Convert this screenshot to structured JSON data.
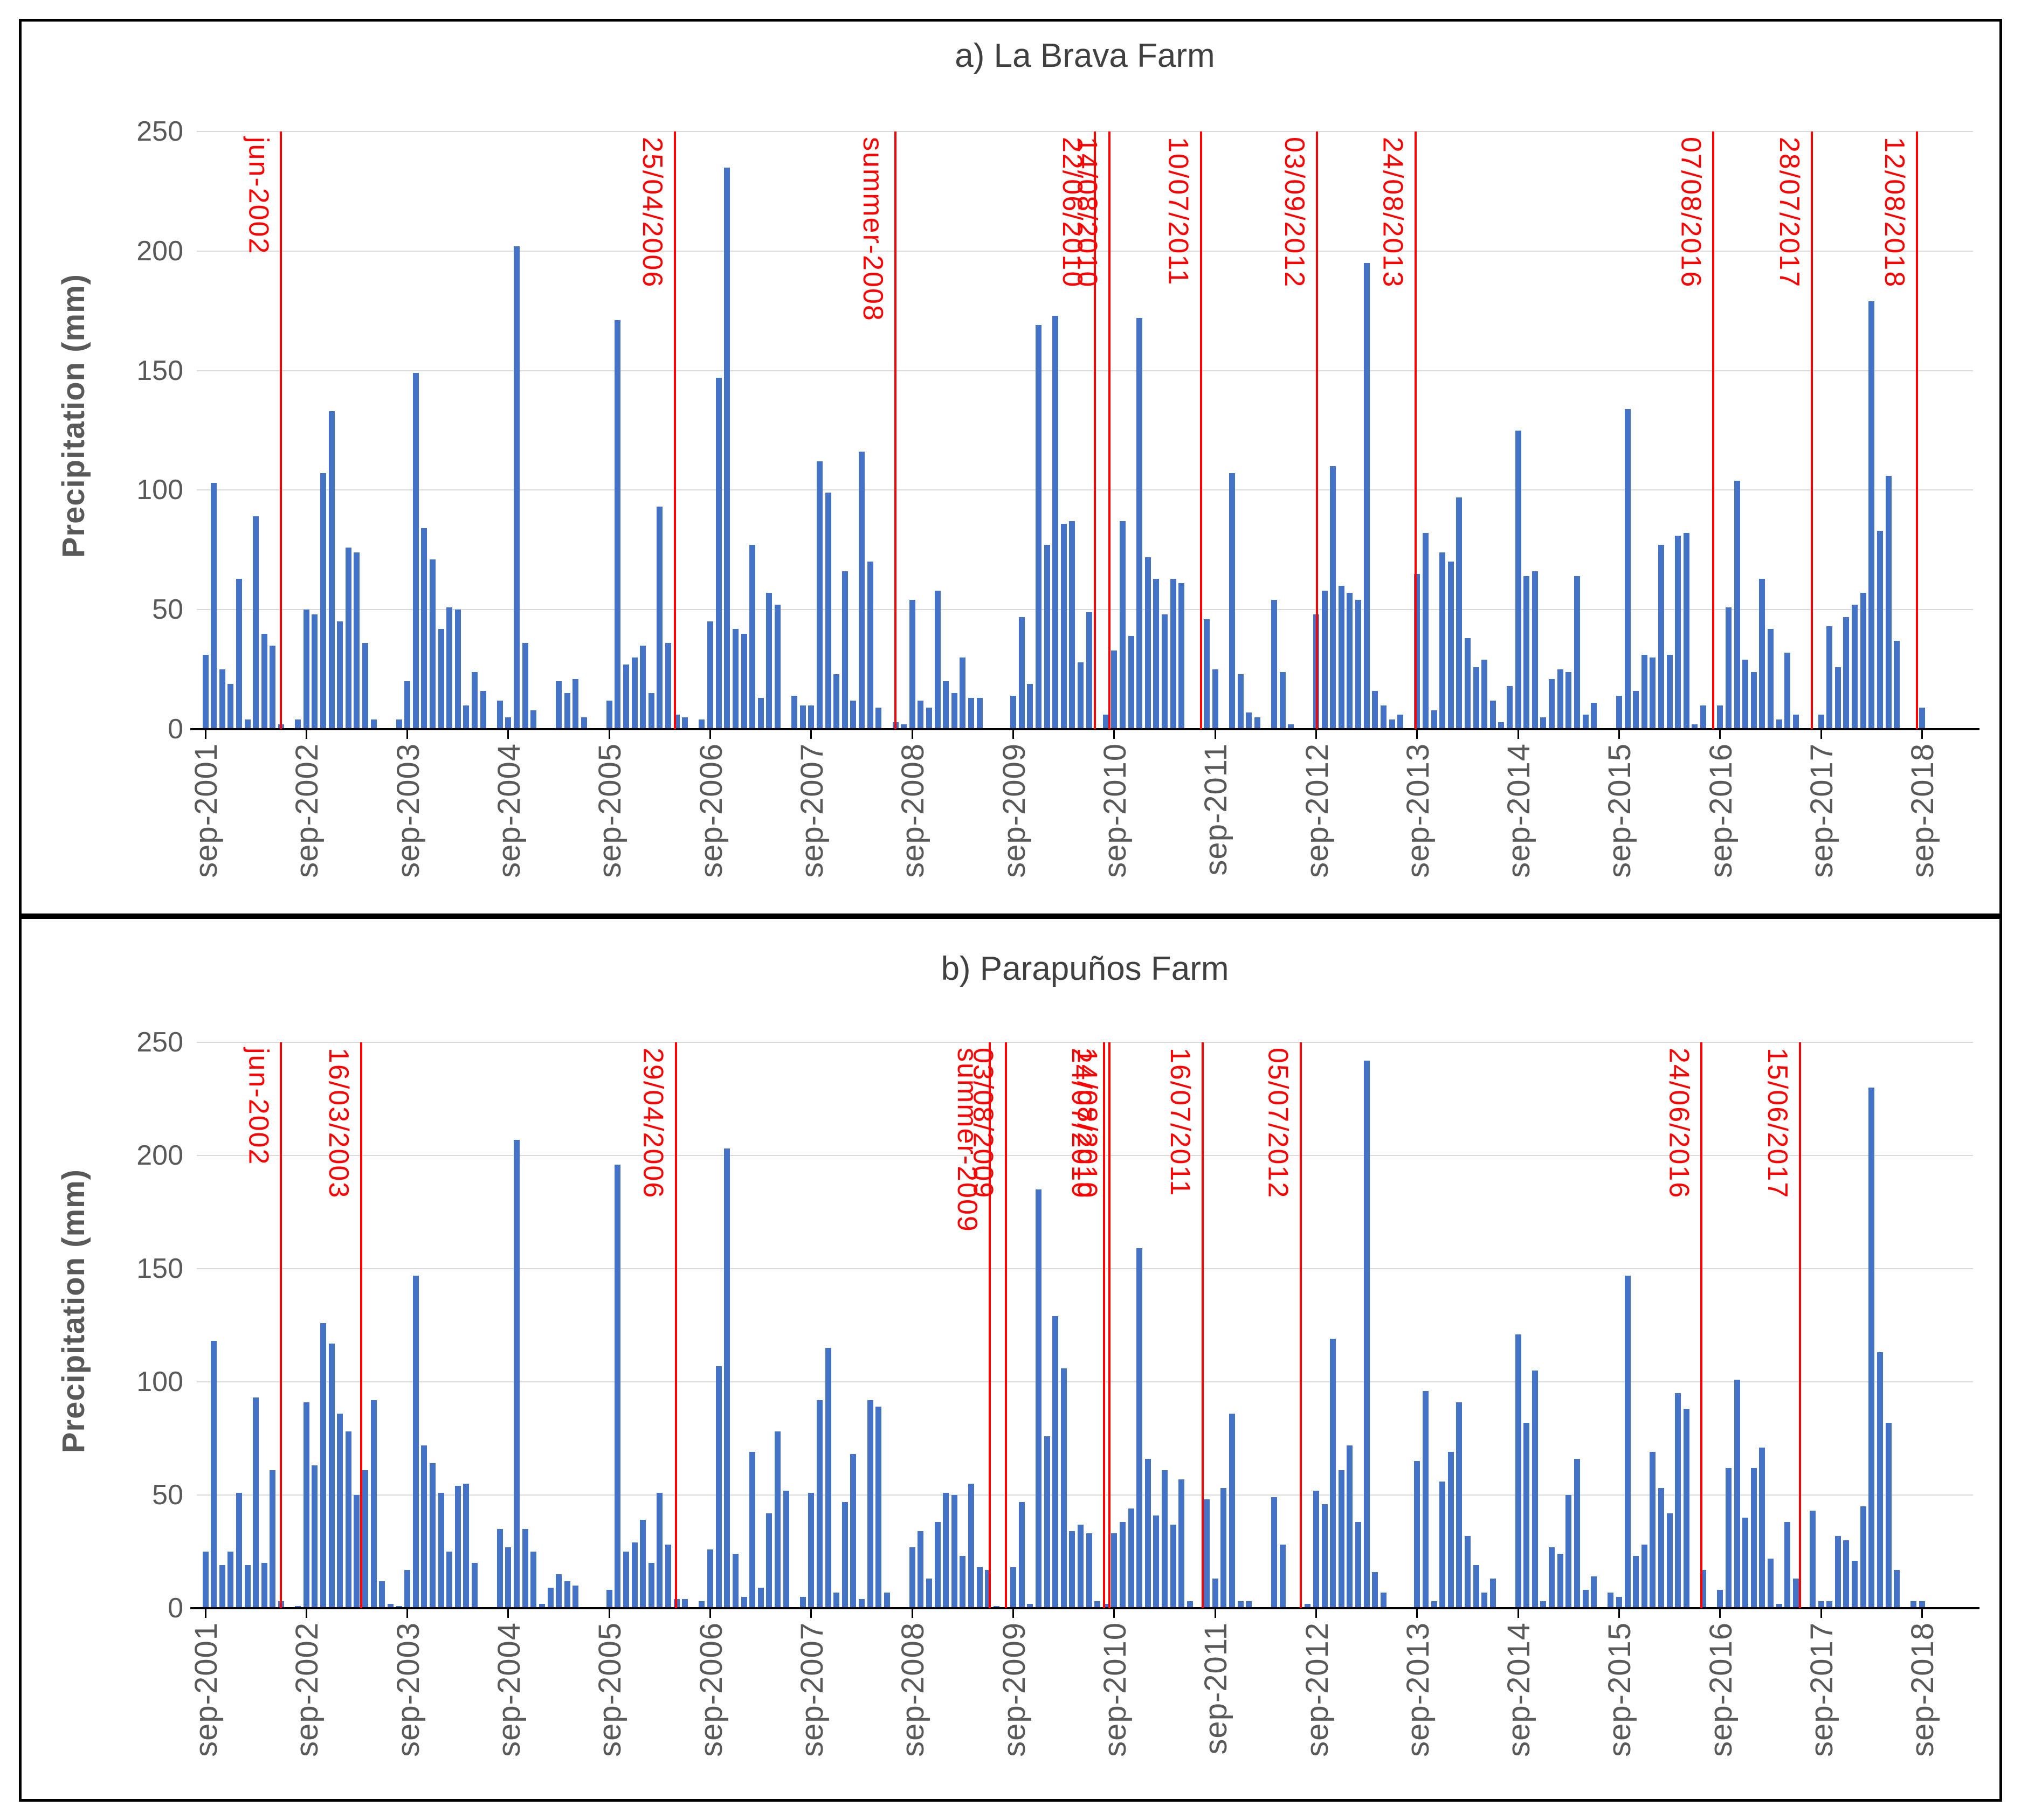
{
  "page": {
    "type": "scientific-figure",
    "description": "Two stacked monthly precipitation bar charts with red event-date marker lines",
    "colors": {
      "bar": "#4472C4",
      "event_line": "#FF0000",
      "event_label": "#FF0000",
      "gridline": "#D9D9D9",
      "axis": "#000000",
      "tick_text": "#595959",
      "title_text": "#404040",
      "panel_border": "#000000",
      "background": "#FFFFFF"
    }
  },
  "chart_data": [
    {
      "type": "bar",
      "panel": "a",
      "title": "a) La Brava Farm",
      "ylabel": "Precipitation (mm)",
      "xlabel": "",
      "ylim": [
        0,
        250
      ],
      "y_ticks": [
        0,
        50,
        100,
        150,
        200,
        250
      ],
      "grid": true,
      "legend": false,
      "x_unit": "month",
      "x_start": "sep-2001",
      "x_end": "sep-2018",
      "n_months": 205,
      "x_tick_labels": [
        "sep-2001",
        "sep-2002",
        "sep-2003",
        "sep-2004",
        "sep-2005",
        "sep-2006",
        "sep-2007",
        "sep-2008",
        "sep-2009",
        "sep-2010",
        "sep-2011",
        "sep-2012",
        "sep-2013",
        "sep-2014",
        "sep-2015",
        "sep-2016",
        "sep-2017",
        "sep-2018"
      ],
      "values": [
        31,
        103,
        25,
        19,
        63,
        4,
        89,
        40,
        35,
        2,
        0,
        4,
        50,
        48,
        107,
        133,
        45,
        76,
        74,
        36,
        4,
        0,
        0,
        4,
        20,
        149,
        84,
        71,
        42,
        51,
        50,
        10,
        24,
        16,
        0,
        12,
        5,
        202,
        36,
        8,
        0,
        0,
        20,
        15,
        21,
        5,
        0,
        0,
        12,
        171,
        27,
        30,
        35,
        15,
        93,
        36,
        6,
        5,
        0,
        4,
        45,
        147,
        235,
        42,
        40,
        77,
        13,
        57,
        52,
        0,
        14,
        10,
        10,
        112,
        99,
        23,
        66,
        12,
        116,
        70,
        9,
        0,
        3,
        2,
        54,
        12,
        9,
        58,
        20,
        15,
        30,
        13,
        13,
        0,
        0,
        0,
        14,
        47,
        19,
        169,
        77,
        173,
        86,
        87,
        28,
        49,
        0,
        6,
        33,
        87,
        39,
        172,
        72,
        63,
        48,
        63,
        61,
        0,
        0,
        46,
        25,
        0,
        107,
        23,
        7,
        5,
        0,
        54,
        24,
        2,
        0,
        0,
        48,
        58,
        110,
        60,
        57,
        54,
        195,
        16,
        10,
        4,
        6,
        0,
        65,
        82,
        8,
        74,
        70,
        97,
        38,
        26,
        29,
        12,
        3,
        18,
        125,
        64,
        66,
        5,
        21,
        25,
        24,
        64,
        6,
        11,
        0,
        0,
        14,
        134,
        16,
        31,
        30,
        77,
        31,
        81,
        82,
        2,
        10,
        0,
        10,
        51,
        104,
        29,
        24,
        63,
        42,
        4,
        32,
        6,
        0,
        0,
        6,
        43,
        26,
        47,
        52,
        57,
        179,
        83,
        106,
        37,
        0,
        0,
        9
      ],
      "annotations": [
        {
          "label": "jun-2002",
          "month_index": 9.0
        },
        {
          "label": "25/04/2006",
          "month_index": 55.8
        },
        {
          "label": "summer-2008",
          "month_index": 82.0
        },
        {
          "label": "22/06/2010",
          "month_index": 105.7
        },
        {
          "label": "14/08/2010",
          "month_index": 107.45
        },
        {
          "label": "10/07/2011",
          "month_index": 118.3
        },
        {
          "label": "03/09/2012",
          "month_index": 132.1
        },
        {
          "label": "24/08/2013",
          "month_index": 143.8
        },
        {
          "label": "07/08/2016",
          "month_index": 179.2
        },
        {
          "label": "28/07/2017",
          "month_index": 190.9
        },
        {
          "label": "12/08/2018",
          "month_index": 203.4
        }
      ]
    },
    {
      "type": "bar",
      "panel": "b",
      "title": "b) Parapuños Farm",
      "ylabel": "Precipitation (mm)",
      "xlabel": "",
      "ylim": [
        0,
        250
      ],
      "y_ticks": [
        0,
        50,
        100,
        150,
        200,
        250
      ],
      "grid": true,
      "legend": false,
      "x_unit": "month",
      "x_start": "sep-2001",
      "x_end": "sep-2018",
      "n_months": 205,
      "x_tick_labels": [
        "sep-2001",
        "sep-2002",
        "sep-2003",
        "sep-2004",
        "sep-2005",
        "sep-2006",
        "sep-2007",
        "sep-2008",
        "sep-2009",
        "sep-2010",
        "sep-2011",
        "sep-2012",
        "sep-2013",
        "sep-2014",
        "sep-2015",
        "sep-2016",
        "sep-2017",
        "sep-2018"
      ],
      "values": [
        25,
        118,
        19,
        25,
        51,
        19,
        93,
        20,
        61,
        3,
        0,
        1,
        91,
        63,
        126,
        117,
        86,
        78,
        50,
        61,
        92,
        12,
        2,
        1,
        17,
        147,
        72,
        64,
        51,
        25,
        54,
        55,
        20,
        0,
        0,
        35,
        27,
        207,
        35,
        25,
        2,
        9,
        15,
        12,
        10,
        0,
        0,
        0,
        8,
        196,
        25,
        29,
        39,
        20,
        51,
        28,
        4,
        4,
        0,
        3,
        26,
        107,
        203,
        24,
        5,
        69,
        9,
        42,
        78,
        52,
        0,
        5,
        51,
        92,
        115,
        7,
        47,
        68,
        4,
        92,
        89,
        7,
        0,
        0,
        27,
        34,
        13,
        38,
        51,
        50,
        23,
        55,
        18,
        17,
        1,
        0,
        18,
        47,
        2,
        185,
        76,
        129,
        106,
        34,
        37,
        33,
        3,
        2,
        33,
        38,
        44,
        159,
        66,
        41,
        61,
        37,
        57,
        3,
        0,
        48,
        13,
        53,
        86,
        3,
        3,
        0,
        0,
        49,
        28,
        0,
        0,
        2,
        52,
        46,
        119,
        61,
        72,
        38,
        242,
        16,
        7,
        0,
        0,
        0,
        65,
        96,
        3,
        56,
        69,
        91,
        32,
        19,
        7,
        13,
        0,
        0,
        121,
        82,
        105,
        3,
        27,
        24,
        50,
        66,
        8,
        14,
        0,
        7,
        5,
        147,
        23,
        28,
        69,
        53,
        42,
        95,
        88,
        0,
        17,
        0,
        8,
        62,
        101,
        40,
        62,
        71,
        22,
        2,
        38,
        13,
        0,
        43,
        3,
        3,
        32,
        30,
        21,
        45,
        230,
        113,
        82,
        17,
        0,
        3,
        3
      ],
      "annotations": [
        {
          "label": "jun-2002",
          "month_index": 9.0
        },
        {
          "label": "16/03/2003",
          "month_index": 18.5
        },
        {
          "label": "29/04/2006",
          "month_index": 55.9
        },
        {
          "label": "summer-2009",
          "month_index": 93.2
        },
        {
          "label": "03/08/2009",
          "month_index": 95.1
        },
        {
          "label": "24/07/2010",
          "month_index": 106.8
        },
        {
          "label": "14/08/2010",
          "month_index": 107.45
        },
        {
          "label": "16/07/2011",
          "month_index": 118.5
        },
        {
          "label": "05/07/2012",
          "month_index": 130.15
        },
        {
          "label": "24/06/2016",
          "month_index": 177.8
        },
        {
          "label": "15/06/2017",
          "month_index": 189.5
        }
      ]
    }
  ]
}
